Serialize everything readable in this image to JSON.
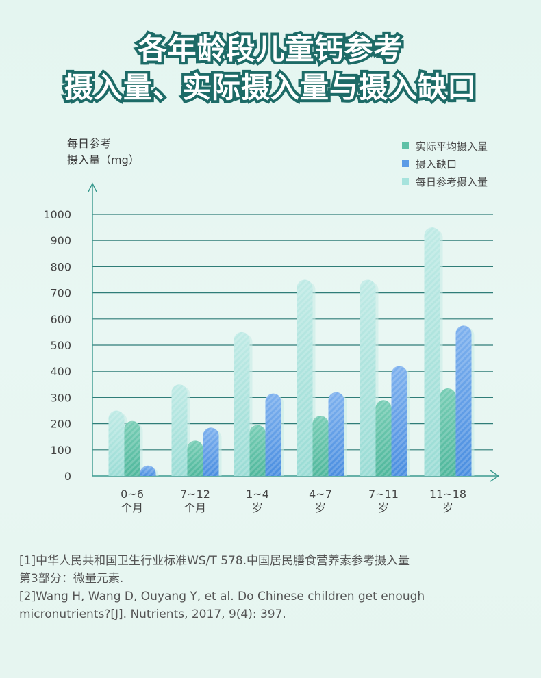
{
  "title": {
    "line1": "各年龄段儿童钙参考",
    "line2": "摄入量、实际摄入量与摄入缺口"
  },
  "colors": {
    "reference": "#a6e3dd",
    "actual": "#5ec0a6",
    "gap": "#5b9be6",
    "grid": "#2f7d78",
    "axis": "#3a9a8f"
  },
  "chart_data": {
    "type": "bar",
    "ylabel_line1": "每日参考",
    "ylabel_line2": "摄入量（mg）",
    "ylim": [
      0,
      1000
    ],
    "yticks": [
      "0",
      "100",
      "200",
      "300",
      "400",
      "500",
      "600",
      "700",
      "800",
      "900",
      "1000"
    ],
    "categories": [
      {
        "line1": "0~6",
        "line2": "个月"
      },
      {
        "line1": "7~12",
        "line2": "个月"
      },
      {
        "line1": "1~4",
        "line2": "岁"
      },
      {
        "line1": "4~7",
        "line2": "岁"
      },
      {
        "line1": "7~11",
        "line2": "岁"
      },
      {
        "line1": "11~18",
        "line2": "岁"
      }
    ],
    "legend_order": [
      "实际平均摄入量",
      "摄入缺口",
      "每日参考摄入量"
    ],
    "legend_position": "top-right",
    "grid": true,
    "series": [
      {
        "name": "每日参考摄入量",
        "color_key": "reference",
        "values": [
          250,
          350,
          550,
          750,
          750,
          950
        ]
      },
      {
        "name": "实际平均摄入量",
        "color_key": "actual",
        "values": [
          210,
          135,
          195,
          230,
          290,
          335
        ]
      },
      {
        "name": "摄入缺口",
        "color_key": "gap",
        "values": [
          40,
          185,
          315,
          320,
          420,
          575
        ]
      }
    ]
  },
  "references": {
    "line1": "[1]中华人民共和国卫生行业标准WS/T 578.中国居民膳食营养素参考摄入量",
    "line2": "第3部分：微量元素.",
    "line3": "[2]Wang H, Wang D, Ouyang Y, et al. Do Chinese children get enough",
    "line4": "micronutrients?[J]. Nutrients, 2017, 9(4): 397."
  }
}
